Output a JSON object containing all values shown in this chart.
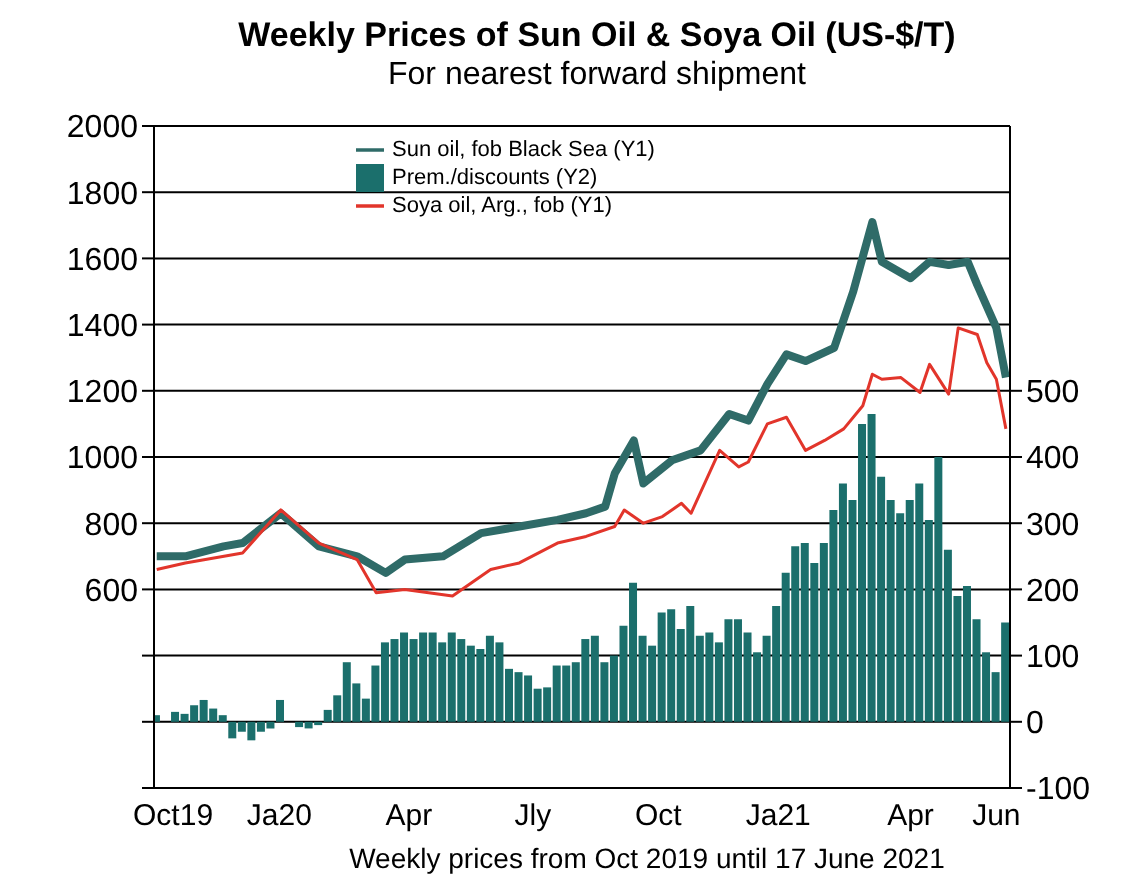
{
  "chart_data": {
    "type": "line",
    "title": "Weekly Prices of Sun Oil & Soya Oil (US-$/T)",
    "subtitle": "For nearest forward shipment",
    "xlabel": "Weekly prices from Oct 2019 until 17 June 2021",
    "xlim": [
      "2019-10-01",
      "2021-06-20"
    ],
    "xticks": [
      {
        "value": "2019-10-15",
        "label": "Oct19"
      },
      {
        "value": "2020-01-01",
        "label": "Ja20"
      },
      {
        "value": "2020-04-05",
        "label": "Apr"
      },
      {
        "value": "2020-07-05",
        "label": "Jly"
      },
      {
        "value": "2020-10-05",
        "label": "Oct"
      },
      {
        "value": "2021-01-01",
        "label": "Ja21"
      },
      {
        "value": "2021-04-08",
        "label": "Apr"
      },
      {
        "value": "2021-06-10",
        "label": "Jun"
      }
    ],
    "ylim": [
      0,
      2000
    ],
    "yticks": [
      {
        "value": 0,
        "label": null
      },
      {
        "value": 200,
        "label": null
      },
      {
        "value": 400,
        "label": null
      },
      600,
      800,
      1000,
      1200,
      1400,
      1600,
      1800,
      2000
    ],
    "y2lim": [
      -100,
      900
    ],
    "y2ticks": [
      -100,
      0,
      100,
      200,
      300,
      400,
      500
    ],
    "grid": "y",
    "legend": "top",
    "marker": "none",
    "series": [
      {
        "name": "Sun oil, fob Black Sea (Y1)",
        "color": "#2f6b68",
        "x": [
          "2019-10-03",
          "2019-10-24",
          "2019-11-21",
          "2019-12-05",
          "2020-01-02",
          "2020-01-30",
          "2020-02-27",
          "2020-03-19",
          "2020-04-02",
          "2020-04-30",
          "2020-05-28",
          "2020-06-25",
          "2020-07-23",
          "2020-08-13",
          "2020-08-27",
          "2020-09-03",
          "2020-09-17",
          "2020-09-24",
          "2020-10-15",
          "2020-11-05",
          "2020-11-26",
          "2020-12-10",
          "2020-12-24",
          "2021-01-07",
          "2021-01-21",
          "2021-02-11",
          "2021-02-25",
          "2021-03-11",
          "2021-03-18",
          "2021-04-08",
          "2021-04-22",
          "2021-05-06",
          "2021-05-20",
          "2021-05-27",
          "2021-06-10",
          "2021-06-17"
        ],
        "values": [
          700,
          700,
          730,
          740,
          830,
          730,
          700,
          650,
          690,
          700,
          770,
          790,
          810,
          830,
          850,
          950,
          1050,
          920,
          990,
          1020,
          1130,
          1110,
          1220,
          1310,
          1290,
          1330,
          1500,
          1710,
          1590,
          1540,
          1590,
          1580,
          1590,
          1520,
          1390,
          1240
        ]
      },
      {
        "name": "Prem./discounts (Y2)",
        "type": "bar",
        "axis": "y2",
        "color": "#1b6f6c",
        "x": [
          "2019-10-03",
          "2019-10-10",
          "2019-10-17",
          "2019-10-24",
          "2019-10-31",
          "2019-11-07",
          "2019-11-14",
          "2019-11-21",
          "2019-11-28",
          "2019-12-05",
          "2019-12-12",
          "2019-12-19",
          "2019-12-26",
          "2020-01-02",
          "2020-01-09",
          "2020-01-16",
          "2020-01-23",
          "2020-01-30",
          "2020-02-06",
          "2020-02-13",
          "2020-02-20",
          "2020-02-27",
          "2020-03-05",
          "2020-03-12",
          "2020-03-19",
          "2020-03-26",
          "2020-04-02",
          "2020-04-09",
          "2020-04-16",
          "2020-04-23",
          "2020-04-30",
          "2020-05-07",
          "2020-05-14",
          "2020-05-21",
          "2020-05-28",
          "2020-06-04",
          "2020-06-11",
          "2020-06-18",
          "2020-06-25",
          "2020-07-02",
          "2020-07-09",
          "2020-07-16",
          "2020-07-23",
          "2020-07-30",
          "2020-08-06",
          "2020-08-13",
          "2020-08-20",
          "2020-08-27",
          "2020-09-03",
          "2020-09-10",
          "2020-09-17",
          "2020-09-24",
          "2020-10-01",
          "2020-10-08",
          "2020-10-15",
          "2020-10-22",
          "2020-10-29",
          "2020-11-05",
          "2020-11-12",
          "2020-11-19",
          "2020-11-26",
          "2020-12-03",
          "2020-12-10",
          "2020-12-17",
          "2020-12-24",
          "2020-12-31",
          "2021-01-07",
          "2021-01-14",
          "2021-01-21",
          "2021-01-28",
          "2021-02-04",
          "2021-02-11",
          "2021-02-18",
          "2021-02-25",
          "2021-03-04",
          "2021-03-11",
          "2021-03-18",
          "2021-03-25",
          "2021-04-01",
          "2021-04-08",
          "2021-04-15",
          "2021-04-22",
          "2021-04-29",
          "2021-05-06",
          "2021-05-13",
          "2021-05-20",
          "2021-05-27",
          "2021-06-03",
          "2021-06-10",
          "2021-06-17"
        ],
        "values": [
          10,
          0,
          15,
          12,
          25,
          33,
          20,
          10,
          -25,
          -15,
          -28,
          -15,
          -10,
          33,
          0,
          -8,
          -10,
          -5,
          18,
          40,
          90,
          58,
          35,
          85,
          120,
          125,
          135,
          125,
          135,
          135,
          120,
          135,
          125,
          115,
          110,
          130,
          120,
          80,
          75,
          70,
          50,
          52,
          85,
          85,
          90,
          125,
          130,
          90,
          100,
          145,
          210,
          130,
          115,
          165,
          170,
          140,
          175,
          130,
          135,
          120,
          155,
          155,
          135,
          105,
          130,
          175,
          225,
          265,
          270,
          240,
          270,
          320,
          360,
          335,
          450,
          465,
          370,
          335,
          315,
          335,
          360,
          305,
          400,
          260,
          190,
          205,
          155,
          105,
          75,
          150
        ]
      },
      {
        "name": "Soya oil, Arg., fob (Y1)",
        "color": "#e2352b",
        "x": [
          "2019-10-03",
          "2019-10-24",
          "2019-12-05",
          "2020-01-02",
          "2020-01-30",
          "2020-02-27",
          "2020-03-12",
          "2020-04-02",
          "2020-05-07",
          "2020-06-04",
          "2020-06-25",
          "2020-07-23",
          "2020-08-13",
          "2020-09-03",
          "2020-09-10",
          "2020-09-24",
          "2020-10-08",
          "2020-10-22",
          "2020-10-29",
          "2020-11-19",
          "2020-12-03",
          "2020-12-10",
          "2020-12-24",
          "2021-01-07",
          "2021-01-21",
          "2021-02-04",
          "2021-02-18",
          "2021-03-04",
          "2021-03-11",
          "2021-03-18",
          "2021-04-01",
          "2021-04-15",
          "2021-04-22",
          "2021-05-06",
          "2021-05-13",
          "2021-05-27",
          "2021-06-03",
          "2021-06-10",
          "2021-06-17"
        ],
        "values": [
          660,
          680,
          710,
          840,
          740,
          690,
          590,
          600,
          580,
          660,
          680,
          740,
          760,
          790,
          840,
          800,
          820,
          860,
          830,
          1020,
          970,
          985,
          1100,
          1120,
          1020,
          1050,
          1085,
          1155,
          1250,
          1235,
          1240,
          1195,
          1280,
          1190,
          1390,
          1370,
          1285,
          1235,
          1085
        ]
      }
    ]
  }
}
